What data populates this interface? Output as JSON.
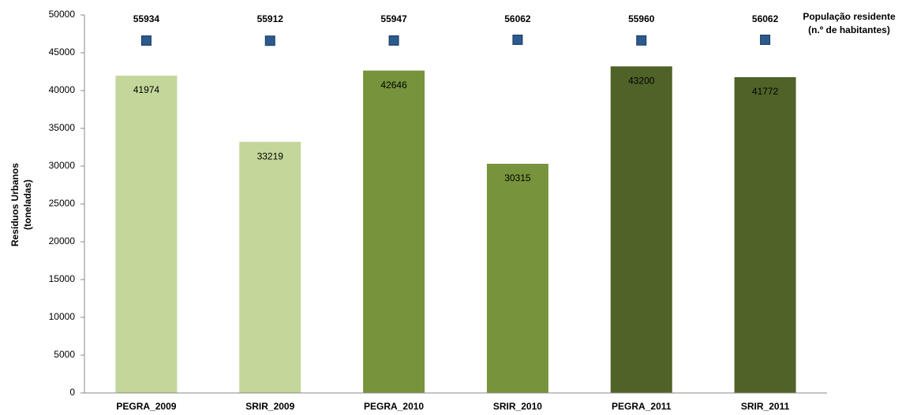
{
  "chart_data": {
    "type": "bar",
    "ylabel": [
      "Resíduos Urbanos",
      "(toneladas)"
    ],
    "categories": [
      "PEGRA_2009",
      "SRIR_2009",
      "PEGRA_2010",
      "SRIR_2010",
      "PEGRA_2011",
      "SRIR_2011"
    ],
    "series": [
      {
        "type": "bar",
        "colors": [
          "#c4d79b",
          "#c4d79b",
          "#77933c",
          "#77933c",
          "#4f6228",
          "#4f6228"
        ],
        "values": [
          41974,
          33219,
          42646,
          30315,
          43200,
          41772
        ]
      },
      {
        "type": "scatter",
        "axis": "y2",
        "name": [
          "População residente",
          "(n.º de habitantes)"
        ],
        "color": "#2c5a8c",
        "values": [
          55934,
          55912,
          55947,
          56062,
          55960,
          56062
        ]
      }
    ],
    "ylim": [
      0,
      50000
    ],
    "yticks": [
      0,
      5000,
      10000,
      15000,
      20000,
      25000,
      30000,
      35000,
      40000,
      45000,
      50000
    ],
    "y2lim": [
      0,
      60000
    ]
  }
}
